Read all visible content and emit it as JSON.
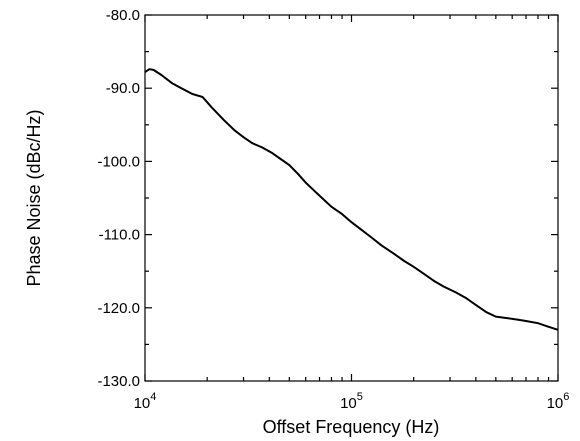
{
  "chart_data": {
    "type": "line",
    "title": "",
    "xlabel": "Offset Frequency (Hz)",
    "ylabel": "Phase Noise (dBc/Hz)",
    "x_scale": "log",
    "xlim": [
      10000,
      1000000
    ],
    "ylim": [
      -130,
      -80
    ],
    "grid": false,
    "x_ticks": [
      {
        "value": 10000,
        "base": "10",
        "exp": "4"
      },
      {
        "value": 100000,
        "base": "10",
        "exp": "5"
      },
      {
        "value": 1000000,
        "base": "10",
        "exp": "6"
      }
    ],
    "y_ticks": [
      {
        "value": -80,
        "label": "-80.0"
      },
      {
        "value": -90,
        "label": "-90.0"
      },
      {
        "value": -100,
        "label": "-100.0"
      },
      {
        "value": -110,
        "label": "-110.0"
      },
      {
        "value": -120,
        "label": "-120.0"
      },
      {
        "value": -130,
        "label": "-130.0"
      }
    ],
    "series": [
      {
        "color": "#000000",
        "x": [
          10000,
          10500,
          11000,
          12000,
          13500,
          15000,
          17000,
          19000,
          21000,
          24000,
          27000,
          30000,
          33000,
          37000,
          41000,
          45000,
          50000,
          55000,
          60000,
          66000,
          72000,
          80000,
          90000,
          100000,
          110000,
          125000,
          140000,
          160000,
          180000,
          200000,
          225000,
          250000,
          280000,
          320000,
          360000,
          400000,
          450000,
          500000,
          560000,
          630000,
          700000,
          800000,
          900000,
          1000000
        ],
        "y": [
          -87.8,
          -87.4,
          -87.5,
          -88.2,
          -89.3,
          -90.0,
          -90.8,
          -91.2,
          -92.6,
          -94.3,
          -95.7,
          -96.7,
          -97.5,
          -98.1,
          -98.8,
          -99.6,
          -100.5,
          -101.7,
          -102.9,
          -104.0,
          -105.0,
          -106.2,
          -107.2,
          -108.3,
          -109.2,
          -110.4,
          -111.5,
          -112.6,
          -113.6,
          -114.4,
          -115.4,
          -116.3,
          -117.1,
          -117.9,
          -118.7,
          -119.6,
          -120.6,
          -121.2,
          -121.4,
          -121.6,
          -121.8,
          -122.1,
          -122.6,
          -123.0
        ]
      }
    ]
  }
}
